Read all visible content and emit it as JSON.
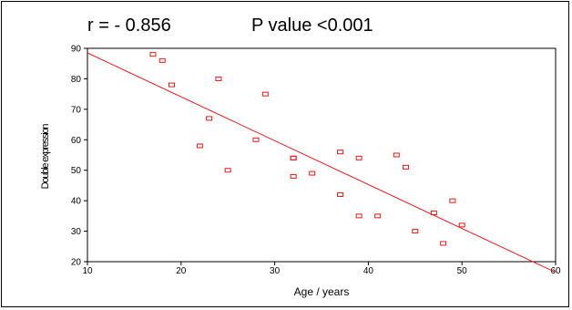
{
  "annotations": {
    "r_text": "r = - 0.856",
    "p_text": "P value <0.001"
  },
  "chart_data": {
    "type": "scatter",
    "title": "",
    "xlabel": "Age / years",
    "ylabel": "Double expression",
    "xlim": [
      10,
      60
    ],
    "ylim": [
      20,
      90
    ],
    "xticks": [
      "10",
      "20",
      "30",
      "40",
      "50",
      "60"
    ],
    "yticks": [
      "20",
      "30",
      "40",
      "50",
      "60",
      "70",
      "80",
      "90"
    ],
    "grid": false,
    "marker_color": "#e41a1c",
    "line_color": "#e41a1c",
    "series": [
      {
        "x": [
          17,
          18,
          19,
          24,
          23,
          22,
          25,
          28,
          29,
          32,
          32,
          32,
          34,
          37,
          37,
          39,
          39,
          41,
          43,
          44,
          45,
          47,
          48,
          49,
          50
        ],
        "y": [
          88,
          86,
          78,
          80,
          67,
          58,
          50,
          60,
          75,
          54,
          54,
          48,
          49,
          56,
          42,
          54,
          35,
          35,
          55,
          51,
          30,
          36,
          26,
          40,
          32
        ]
      }
    ],
    "fit_line": {
      "x": [
        10,
        60
      ],
      "y": [
        88.5,
        16.5
      ]
    }
  }
}
